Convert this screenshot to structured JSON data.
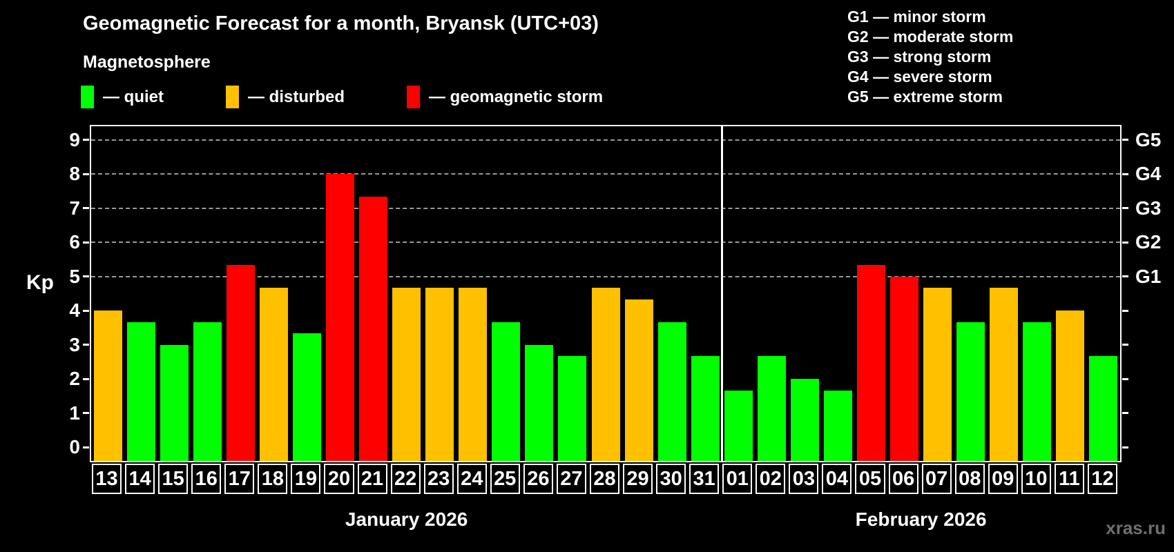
{
  "title": "Geomagnetic Forecast for a month, Bryansk (UTC+03)",
  "subtitle": "Magnetosphere",
  "legend": {
    "items": [
      {
        "key": "quiet",
        "label": "— quiet",
        "color": "#00ff00"
      },
      {
        "key": "disturbed",
        "label": "— disturbed",
        "color": "#ffc000"
      },
      {
        "key": "storm",
        "label": "— geomagnetic storm",
        "color": "#ff0000"
      }
    ]
  },
  "g_legend": [
    "G1 — minor storm",
    "G2 — moderate storm",
    "G3 — strong storm",
    "G4 — severe storm",
    "G5 — extreme storm"
  ],
  "watermark": "xras.ru",
  "chart_data": {
    "type": "bar",
    "ylabel": "Kp",
    "ylim": [
      -0.4,
      9.4
    ],
    "y_ticks": [
      0,
      1,
      2,
      3,
      4,
      5,
      6,
      7,
      8,
      9
    ],
    "gridlines_at": [
      5,
      6,
      7,
      8,
      9
    ],
    "grid_color": "#9a9a9a",
    "right_axis_labels": [
      {
        "kp": 5,
        "label": "G1"
      },
      {
        "kp": 6,
        "label": "G2"
      },
      {
        "kp": 7,
        "label": "G3"
      },
      {
        "kp": 8,
        "label": "G4"
      },
      {
        "kp": 9,
        "label": "G5"
      }
    ],
    "colors": {
      "quiet": "#00ff00",
      "disturbed": "#ffc000",
      "storm": "#ff0000"
    },
    "months": [
      {
        "label": "January 2026",
        "days": [
          {
            "day": "13",
            "kp": 4.0,
            "status": "disturbed"
          },
          {
            "day": "14",
            "kp": 3.67,
            "status": "quiet"
          },
          {
            "day": "15",
            "kp": 3.0,
            "status": "quiet"
          },
          {
            "day": "16",
            "kp": 3.67,
            "status": "quiet"
          },
          {
            "day": "17",
            "kp": 5.33,
            "status": "storm"
          },
          {
            "day": "18",
            "kp": 4.67,
            "status": "disturbed"
          },
          {
            "day": "19",
            "kp": 3.33,
            "status": "quiet"
          },
          {
            "day": "20",
            "kp": 8.0,
            "status": "storm"
          },
          {
            "day": "21",
            "kp": 7.33,
            "status": "storm"
          },
          {
            "day": "22",
            "kp": 4.67,
            "status": "disturbed"
          },
          {
            "day": "23",
            "kp": 4.67,
            "status": "disturbed"
          },
          {
            "day": "24",
            "kp": 4.67,
            "status": "disturbed"
          },
          {
            "day": "25",
            "kp": 3.67,
            "status": "quiet"
          },
          {
            "day": "26",
            "kp": 3.0,
            "status": "quiet"
          },
          {
            "day": "27",
            "kp": 2.67,
            "status": "quiet"
          },
          {
            "day": "28",
            "kp": 4.67,
            "status": "disturbed"
          },
          {
            "day": "29",
            "kp": 4.33,
            "status": "disturbed"
          },
          {
            "day": "30",
            "kp": 3.67,
            "status": "quiet"
          },
          {
            "day": "31",
            "kp": 2.67,
            "status": "quiet"
          }
        ]
      },
      {
        "label": "February 2026",
        "days": [
          {
            "day": "01",
            "kp": 1.67,
            "status": "quiet"
          },
          {
            "day": "02",
            "kp": 2.67,
            "status": "quiet"
          },
          {
            "day": "03",
            "kp": 2.0,
            "status": "quiet"
          },
          {
            "day": "04",
            "kp": 1.67,
            "status": "quiet"
          },
          {
            "day": "05",
            "kp": 5.33,
            "status": "storm"
          },
          {
            "day": "06",
            "kp": 5.0,
            "status": "storm"
          },
          {
            "day": "07",
            "kp": 4.67,
            "status": "disturbed"
          },
          {
            "day": "08",
            "kp": 3.67,
            "status": "quiet"
          },
          {
            "day": "09",
            "kp": 4.67,
            "status": "disturbed"
          },
          {
            "day": "10",
            "kp": 3.67,
            "status": "quiet"
          },
          {
            "day": "11",
            "kp": 4.0,
            "status": "disturbed"
          },
          {
            "day": "12",
            "kp": 2.67,
            "status": "quiet"
          }
        ]
      }
    ]
  }
}
